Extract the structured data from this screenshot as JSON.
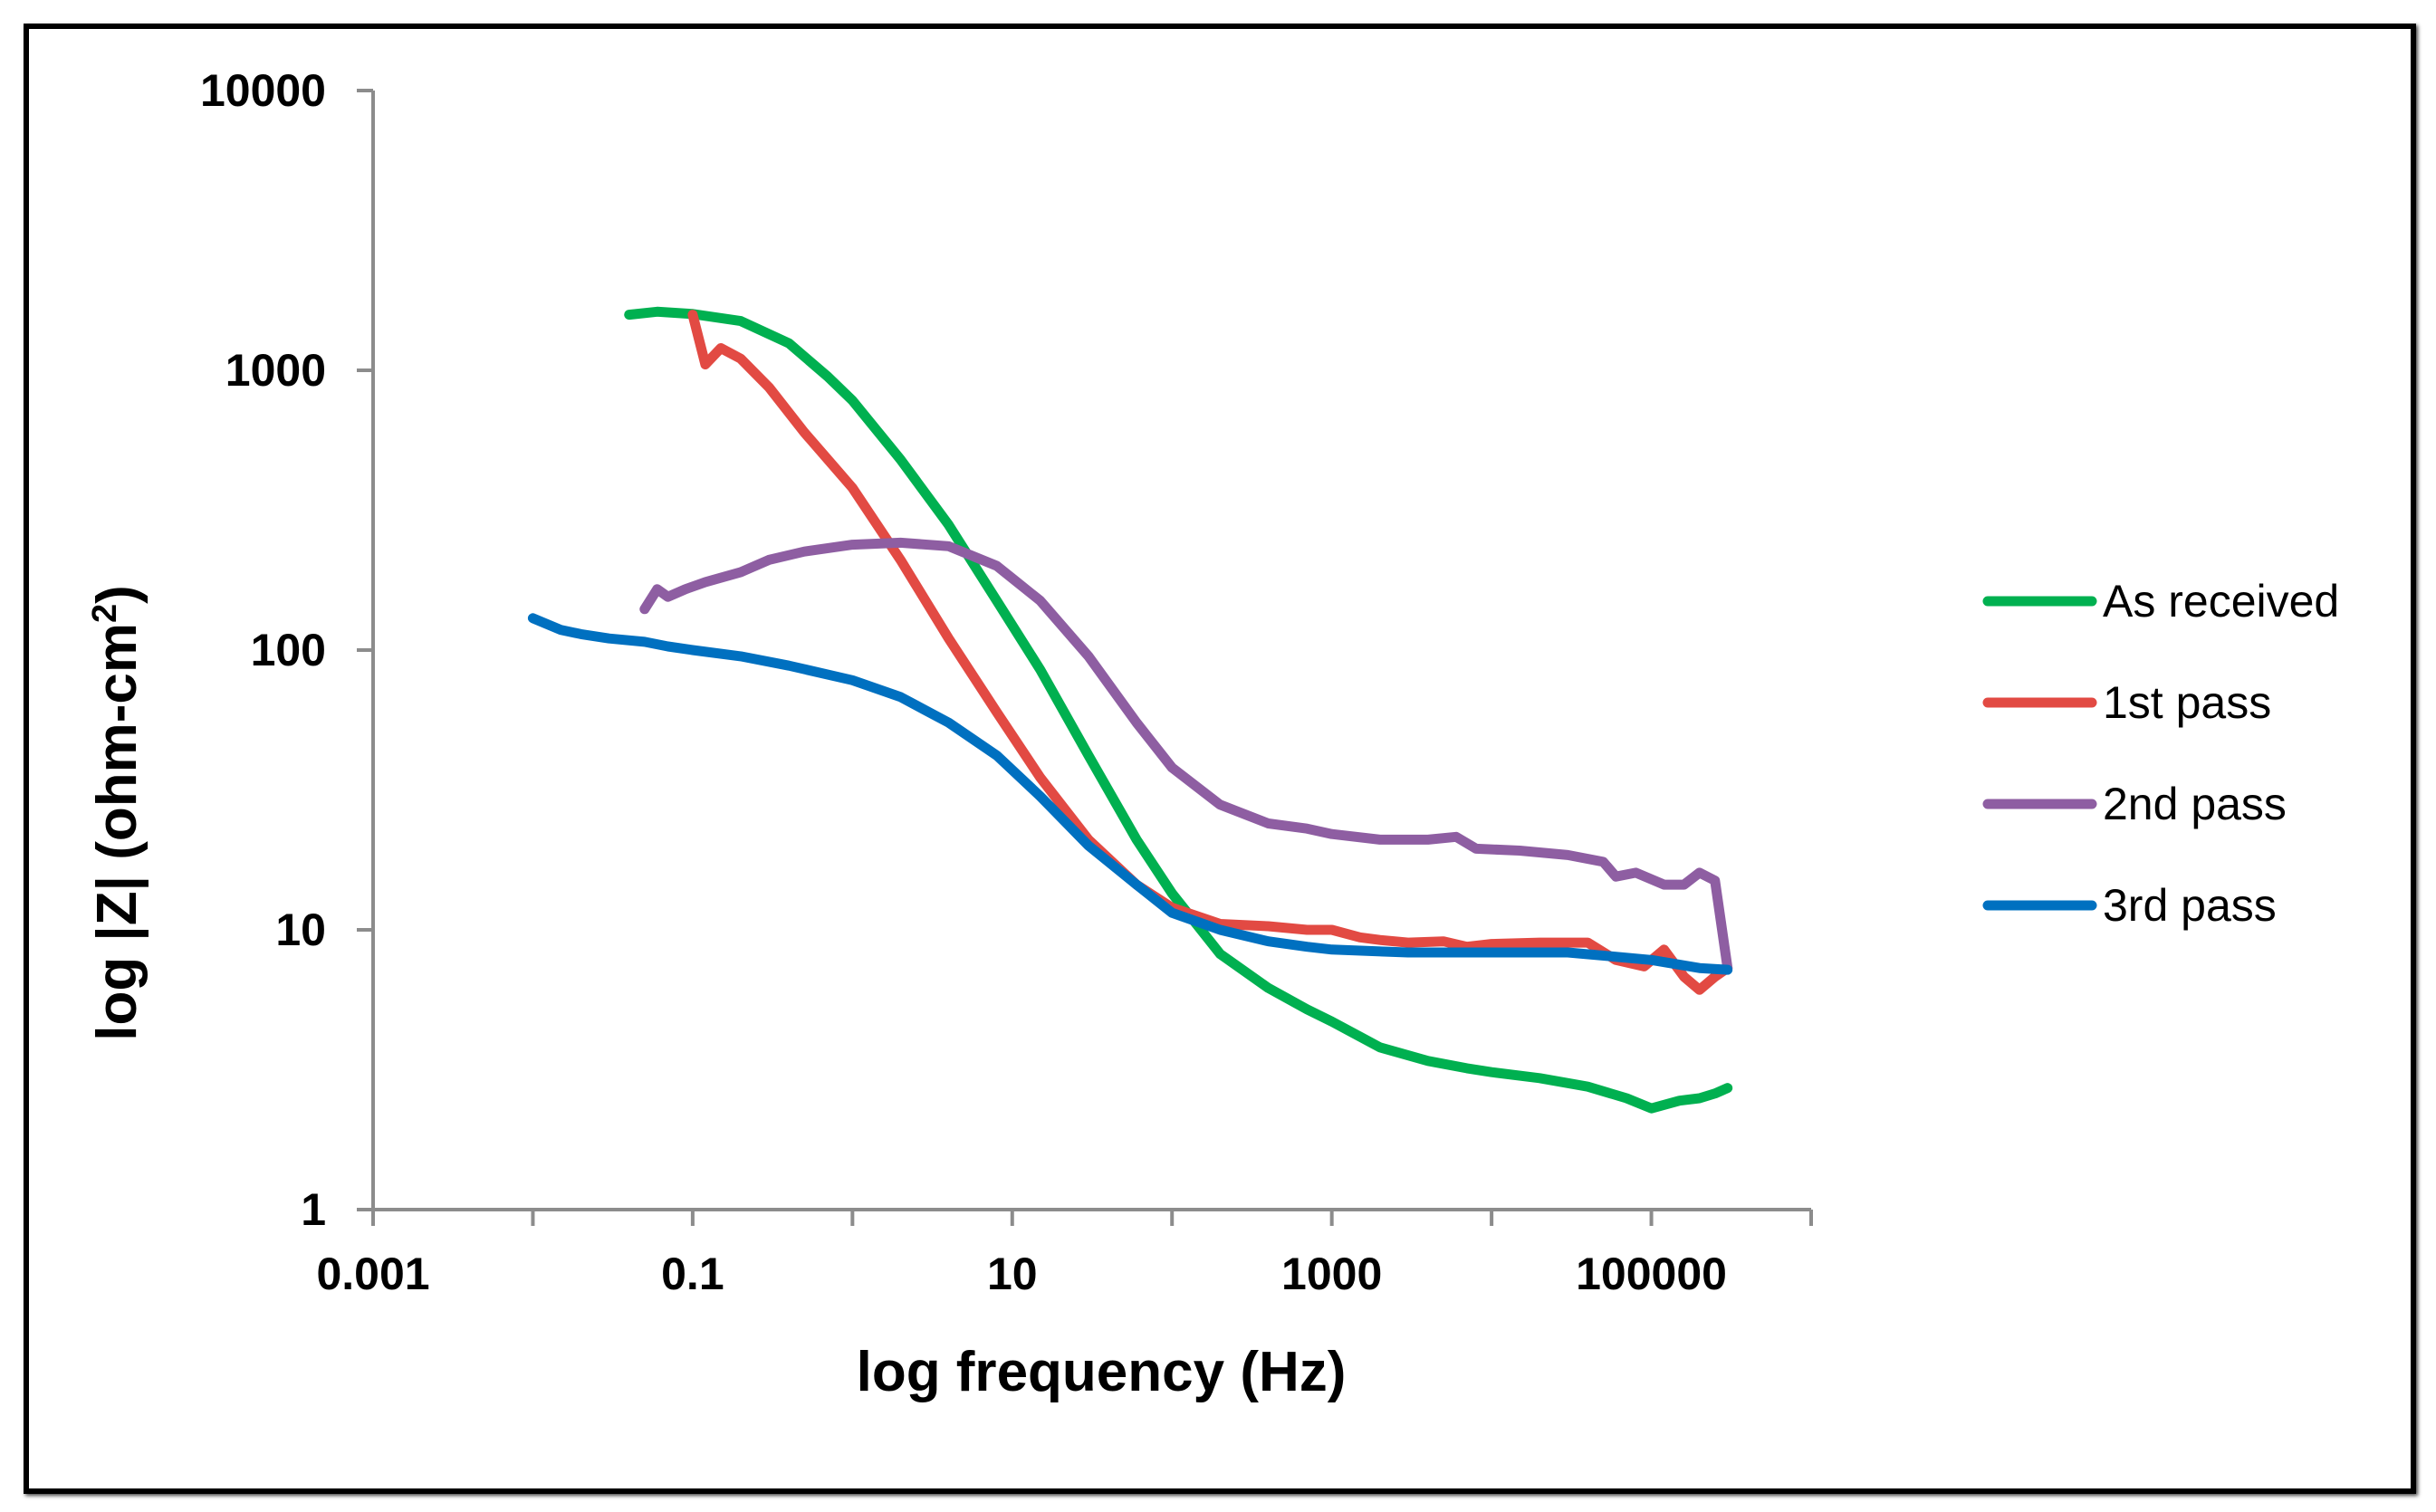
{
  "chart_data": {
    "type": "line",
    "xscale": "log",
    "yscale": "log",
    "title": "",
    "xlabel": "log frequency (Hz)",
    "ylabel_main": "log |Z| (ohm-cm",
    "ylabel_sup": "2",
    "ylabel_close": ")",
    "xlim": [
      0.001,
      1000000
    ],
    "ylim": [
      1,
      10000
    ],
    "x_ticks": [
      {
        "value": 0.001,
        "label": "0.001"
      },
      {
        "value": 0.1,
        "label": "0.1"
      },
      {
        "value": 10,
        "label": "10"
      },
      {
        "value": 1000,
        "label": "1000"
      },
      {
        "value": 100000,
        "label": "100000"
      }
    ],
    "y_ticks": [
      {
        "value": 1,
        "label": "1"
      },
      {
        "value": 10,
        "label": "10"
      },
      {
        "value": 100,
        "label": "100"
      },
      {
        "value": 1000,
        "label": "1000"
      },
      {
        "value": 10000,
        "label": "10000"
      }
    ],
    "legend_position": "right",
    "series": [
      {
        "name": "As received",
        "color": "#00b050",
        "points": [
          [
            0.04,
            1580
          ],
          [
            0.06,
            1620
          ],
          [
            0.1,
            1590
          ],
          [
            0.2,
            1500
          ],
          [
            0.4,
            1250
          ],
          [
            0.7,
            950
          ],
          [
            1,
            780
          ],
          [
            2,
            480
          ],
          [
            4,
            280
          ],
          [
            8,
            150
          ],
          [
            15,
            85
          ],
          [
            30,
            42
          ],
          [
            60,
            21
          ],
          [
            100,
            13.5
          ],
          [
            200,
            8.2
          ],
          [
            400,
            6.2
          ],
          [
            700,
            5.2
          ],
          [
            1000,
            4.7
          ],
          [
            2000,
            3.8
          ],
          [
            4000,
            3.4
          ],
          [
            7000,
            3.2
          ],
          [
            10000,
            3.1
          ],
          [
            20000,
            2.95
          ],
          [
            40000,
            2.75
          ],
          [
            70000,
            2.5
          ],
          [
            100000,
            2.3
          ],
          [
            150000,
            2.45
          ],
          [
            200000,
            2.5
          ],
          [
            250000,
            2.6
          ],
          [
            300000,
            2.72
          ]
        ]
      },
      {
        "name": "1st pass",
        "color": "#e24a43",
        "points": [
          [
            0.1,
            1580
          ],
          [
            0.12,
            1050
          ],
          [
            0.15,
            1200
          ],
          [
            0.2,
            1100
          ],
          [
            0.3,
            870
          ],
          [
            0.5,
            600
          ],
          [
            1,
            380
          ],
          [
            2,
            210
          ],
          [
            4,
            110
          ],
          [
            8,
            60
          ],
          [
            15,
            35
          ],
          [
            30,
            21
          ],
          [
            60,
            14.5
          ],
          [
            100,
            12
          ],
          [
            200,
            10.5
          ],
          [
            400,
            10.3
          ],
          [
            700,
            10
          ],
          [
            1000,
            10
          ],
          [
            1500,
            9.4
          ],
          [
            2000,
            9.2
          ],
          [
            3000,
            9.0
          ],
          [
            5000,
            9.1
          ],
          [
            7000,
            8.7
          ],
          [
            10000,
            8.9
          ],
          [
            20000,
            9.0
          ],
          [
            40000,
            9.0
          ],
          [
            60000,
            7.8
          ],
          [
            90000,
            7.4
          ],
          [
            120000,
            8.5
          ],
          [
            160000,
            6.8
          ],
          [
            200000,
            6.1
          ],
          [
            250000,
            6.8
          ],
          [
            300000,
            7.3
          ]
        ]
      },
      {
        "name": "2nd pass",
        "color": "#8e5ea2",
        "points": [
          [
            0.05,
            140
          ],
          [
            0.06,
            165
          ],
          [
            0.07,
            155
          ],
          [
            0.09,
            165
          ],
          [
            0.12,
            175
          ],
          [
            0.2,
            190
          ],
          [
            0.3,
            210
          ],
          [
            0.5,
            225
          ],
          [
            1,
            238
          ],
          [
            2,
            242
          ],
          [
            4,
            235
          ],
          [
            8,
            200
          ],
          [
            15,
            150
          ],
          [
            30,
            95
          ],
          [
            60,
            55
          ],
          [
            100,
            38
          ],
          [
            200,
            28
          ],
          [
            400,
            24
          ],
          [
            700,
            23
          ],
          [
            1000,
            22
          ],
          [
            2000,
            21
          ],
          [
            4000,
            21
          ],
          [
            6000,
            21.5
          ],
          [
            8000,
            19.5
          ],
          [
            15000,
            19.2
          ],
          [
            30000,
            18.5
          ],
          [
            50000,
            17.5
          ],
          [
            60000,
            15.5
          ],
          [
            80000,
            16
          ],
          [
            120000,
            14.5
          ],
          [
            160000,
            14.5
          ],
          [
            200000,
            16
          ],
          [
            250000,
            15
          ],
          [
            300000,
            7.3
          ]
        ]
      },
      {
        "name": "3rd pass",
        "color": "#0070c0",
        "points": [
          [
            0.01,
            130
          ],
          [
            0.015,
            118
          ],
          [
            0.02,
            114
          ],
          [
            0.03,
            110
          ],
          [
            0.05,
            107
          ],
          [
            0.07,
            103
          ],
          [
            0.1,
            100
          ],
          [
            0.2,
            95
          ],
          [
            0.4,
            88
          ],
          [
            1,
            78
          ],
          [
            2,
            68
          ],
          [
            4,
            55
          ],
          [
            8,
            42
          ],
          [
            15,
            30
          ],
          [
            30,
            20
          ],
          [
            60,
            14.5
          ],
          [
            100,
            11.5
          ],
          [
            200,
            10
          ],
          [
            400,
            9.1
          ],
          [
            700,
            8.7
          ],
          [
            1000,
            8.5
          ],
          [
            3000,
            8.3
          ],
          [
            10000,
            8.3
          ],
          [
            30000,
            8.3
          ],
          [
            100000,
            7.8
          ],
          [
            200000,
            7.3
          ],
          [
            300000,
            7.2
          ]
        ]
      }
    ]
  }
}
